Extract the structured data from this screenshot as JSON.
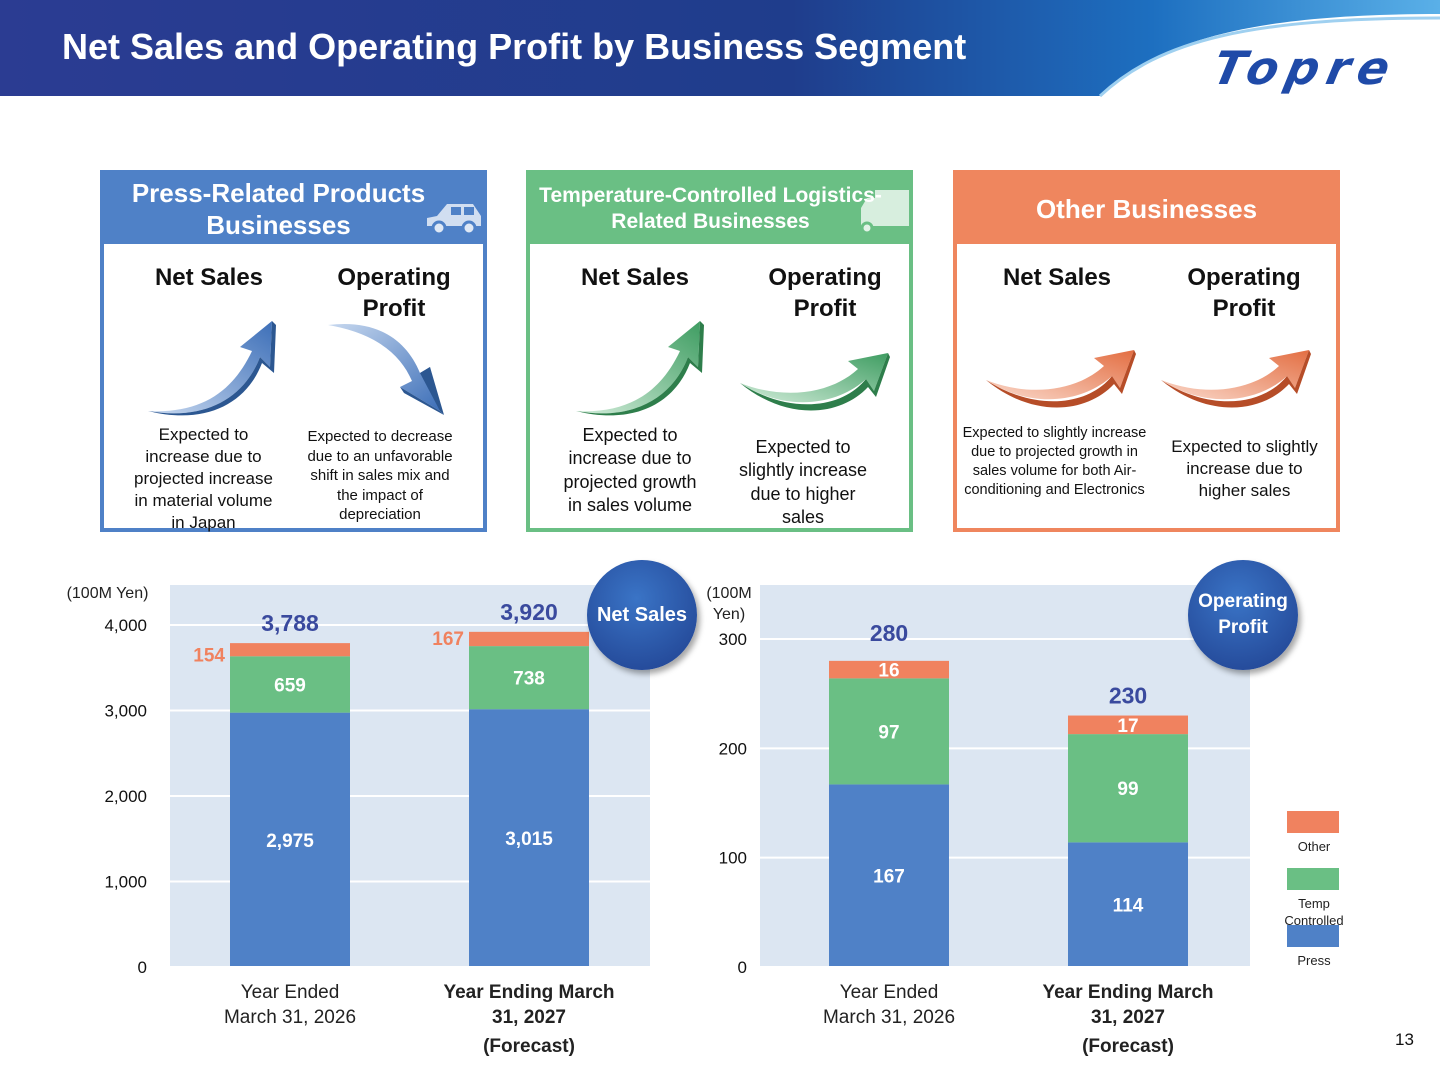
{
  "header": {
    "title": "Net Sales and Operating Profit by Business Segment",
    "logo_text": "Topre"
  },
  "panels": [
    {
      "title": "Press-Related Products Businesses",
      "net_sales_label": "Net Sales",
      "op_profit_label": "Operating Profit",
      "net_sales_trend": "up",
      "op_profit_trend": "down",
      "net_sales_desc": "Expected to increase due to projected increase in material volume in Japan",
      "op_profit_desc": "Expected to decrease due to an unfavorable shift in sales mix and the impact of depreciation",
      "color": "#4f81c7"
    },
    {
      "title": "Temperature-Controlled Logistics-Related Businesses",
      "net_sales_label": "Net Sales",
      "op_profit_label": "Operating Profit",
      "net_sales_trend": "up",
      "op_profit_trend": "slightly up",
      "net_sales_desc": "Expected to increase due to projected growth in sales volume",
      "op_profit_desc": "Expected to slightly increase due to higher sales",
      "color": "#6abf84"
    },
    {
      "title": "Other Businesses",
      "net_sales_label": "Net Sales",
      "op_profit_label": "Operating Profit",
      "net_sales_trend": "slightly up",
      "op_profit_trend": "slightly up",
      "net_sales_desc": "Expected to slightly increase due to projected growth in sales volume for both Air-conditioning and Electronics",
      "op_profit_desc": "Expected to slightly increase due to higher sales",
      "color": "#ef865e"
    }
  ],
  "colors": {
    "press": "#4f81c7",
    "temp": "#6abf84",
    "other": "#f0825f",
    "total_label": "#3a4a9e",
    "plot_bg": "#dce6f2",
    "badge": "#2a4fa0"
  },
  "badges": {
    "net_sales": "Net Sales",
    "op_profit": "Operating Profit"
  },
  "units": {
    "net_sales": "(100M Yen)",
    "op_profit": "(100M Yen)"
  },
  "legend": [
    "Other",
    "Temp Controlled",
    "Press"
  ],
  "page_number": "13",
  "chart_data": [
    {
      "type": "bar",
      "stacked": true,
      "title": "",
      "ylabel": "(100M Yen)",
      "ylim": [
        0,
        4400
      ],
      "yticks": [
        "0",
        "1,000",
        "2,000",
        "3,000",
        "4,000"
      ],
      "ytick_values": [
        0,
        1000,
        2000,
        3000,
        4000
      ],
      "grid": true,
      "categories": [
        "Year Ended March 31, 2026",
        "Year Ending March 31, 2027 (Forecast)"
      ],
      "category_lines": [
        [
          "Year Ended",
          "March 31, 2026"
        ],
        [
          "Year Ending March",
          "31, 2027",
          "(Forecast)"
        ]
      ],
      "category_bold": [
        false,
        true
      ],
      "series": [
        {
          "name": "Press",
          "values": [
            2975,
            3015
          ],
          "labels": [
            "2,975",
            "3,015"
          ]
        },
        {
          "name": "Temp Controlled",
          "values": [
            659,
            738
          ],
          "labels": [
            "659",
            "738"
          ]
        },
        {
          "name": "Other",
          "values": [
            154,
            167
          ],
          "labels": [
            "154",
            "167"
          ]
        }
      ],
      "totals": [
        3788,
        3920
      ],
      "total_labels": [
        "3,788",
        "3,920"
      ]
    },
    {
      "type": "bar",
      "stacked": true,
      "title": "",
      "ylabel": "(100M Yen)",
      "ylim": [
        0,
        350
      ],
      "yticks": [
        "0",
        "100",
        "200",
        "300"
      ],
      "ytick_values": [
        0,
        100,
        200,
        300
      ],
      "grid": true,
      "categories": [
        "Year Ended March 31, 2026",
        "Year Ending March 31, 2027 (Forecast)"
      ],
      "category_lines": [
        [
          "Year Ended",
          "March 31, 2026"
        ],
        [
          "Year Ending March",
          "31, 2027",
          "(Forecast)"
        ]
      ],
      "category_bold": [
        false,
        true
      ],
      "legend_position": "right",
      "series": [
        {
          "name": "Press",
          "values": [
            167,
            114
          ],
          "labels": [
            "167",
            "114"
          ]
        },
        {
          "name": "Temp Controlled",
          "values": [
            97,
            99
          ],
          "labels": [
            "97",
            "99"
          ]
        },
        {
          "name": "Other",
          "values": [
            16,
            17
          ],
          "labels": [
            "16",
            "17"
          ]
        }
      ],
      "totals": [
        280,
        230
      ],
      "total_labels": [
        "280",
        "230"
      ]
    }
  ]
}
